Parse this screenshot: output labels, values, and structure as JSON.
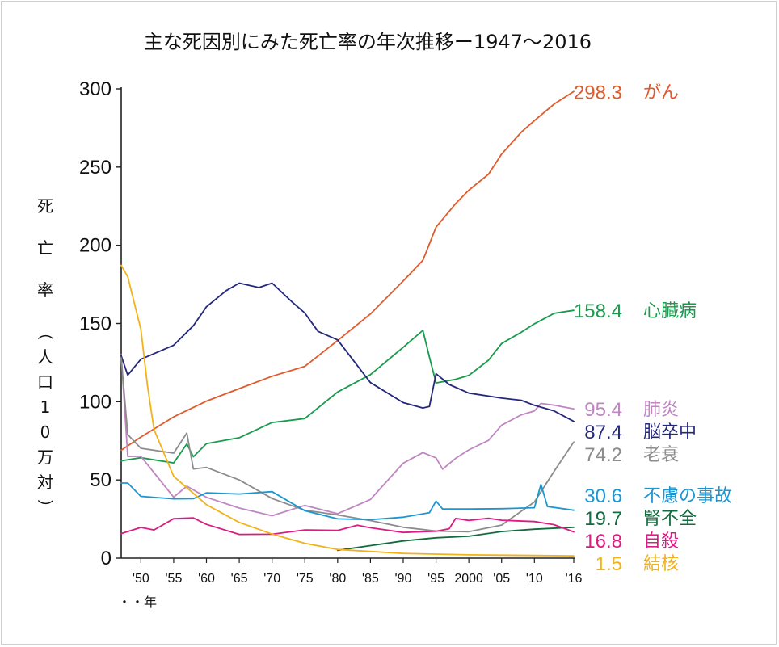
{
  "chart_data": {
    "type": "line",
    "title": "主な死因別にみた死亡率の年次推移ー1947〜2016",
    "ylabel": "死亡率（人口10万対）",
    "xlabel": "年",
    "ylim": [
      0,
      300
    ],
    "xlim": [
      1947,
      2016
    ],
    "yticks": [
      "0",
      "50",
      "100",
      "150",
      "200",
      "250",
      "300"
    ],
    "xticks": [
      {
        "label": "'50",
        "year": 1950
      },
      {
        "label": "'55",
        "year": 1955
      },
      {
        "label": "'60",
        "year": 1960
      },
      {
        "label": "'65",
        "year": 1965
      },
      {
        "label": "'70",
        "year": 1970
      },
      {
        "label": "'75",
        "year": 1975
      },
      {
        "label": "'80",
        "year": 1980
      },
      {
        "label": "'85",
        "year": 1985
      },
      {
        "label": "'90",
        "year": 1990
      },
      {
        "label": "'95",
        "year": 1995
      },
      {
        "label": "2000",
        "year": 2000
      },
      {
        "label": "'05",
        "year": 2005
      },
      {
        "label": "'10",
        "year": 2010
      },
      {
        "label": "'16",
        "year": 2016
      }
    ],
    "x_footnote": "・・年",
    "grid": false,
    "series": [
      {
        "name": "がん",
        "end_label": "298.3",
        "color": "#e05a2b",
        "x": [
          1947,
          1950,
          1955,
          1960,
          1965,
          1970,
          1975,
          1980,
          1985,
          1990,
          1993,
          1995,
          1998,
          2000,
          2003,
          2005,
          2008,
          2010,
          2013,
          2016
        ],
        "values": [
          69.0,
          77.4,
          90.3,
          100.4,
          108.4,
          116.3,
          122.6,
          139.1,
          156.1,
          177.2,
          190.4,
          211.6,
          226.7,
          235.2,
          245.4,
          258.3,
          272.3,
          279.7,
          290.3,
          298.3
        ]
      },
      {
        "name": "心臓病",
        "end_label": "158.4",
        "color": "#1a9a4c",
        "x": [
          1947,
          1950,
          1955,
          1957,
          1958,
          1960,
          1965,
          1970,
          1975,
          1980,
          1985,
          1990,
          1993,
          1994,
          1995,
          1998,
          2000,
          2003,
          2005,
          2008,
          2010,
          2013,
          2016
        ],
        "values": [
          62.2,
          64.2,
          60.9,
          73.0,
          64.8,
          73.2,
          77.0,
          86.7,
          89.2,
          106.2,
          117.3,
          134.8,
          145.6,
          128.5,
          112.0,
          114.3,
          116.8,
          126.5,
          137.2,
          144.4,
          149.8,
          156.5,
          158.4
        ]
      },
      {
        "name": "肺炎",
        "end_label": "95.4",
        "color": "#bf86c2",
        "x": [
          1947,
          1948,
          1950,
          1955,
          1957,
          1960,
          1965,
          1970,
          1975,
          1980,
          1985,
          1990,
          1993,
          1995,
          1996,
          1998,
          2000,
          2003,
          2005,
          2008,
          2010,
          2011,
          2013,
          2016
        ],
        "values": [
          130.0,
          65.0,
          65.1,
          39.0,
          46.0,
          38.9,
          32.0,
          27.1,
          33.7,
          28.4,
          37.5,
          60.7,
          67.5,
          64.1,
          56.9,
          63.8,
          69.2,
          75.3,
          85.0,
          91.6,
          94.1,
          98.9,
          97.8,
          95.4
        ]
      },
      {
        "name": "脳卒中",
        "end_label": "87.4",
        "color": "#24287b",
        "x": [
          1947,
          1948,
          1950,
          1955,
          1958,
          1960,
          1963,
          1965,
          1968,
          1970,
          1973,
          1975,
          1977,
          1980,
          1985,
          1990,
          1993,
          1994,
          1995,
          1997,
          2000,
          2005,
          2008,
          2010,
          2013,
          2016
        ],
        "values": [
          129.4,
          117.0,
          127.1,
          136.1,
          148.6,
          160.7,
          171.0,
          175.8,
          173.0,
          175.8,
          164.0,
          156.7,
          145.0,
          139.5,
          112.2,
          99.4,
          96.0,
          96.9,
          117.9,
          111.0,
          105.5,
          102.3,
          100.9,
          97.7,
          94.1,
          87.4
        ]
      },
      {
        "name": "老衰",
        "end_label": "74.2",
        "color": "#8c8c8c",
        "x": [
          1947,
          1948,
          1950,
          1955,
          1957,
          1958,
          1960,
          1965,
          1970,
          1975,
          1980,
          1985,
          1990,
          1995,
          2000,
          2005,
          2010,
          2013,
          2016
        ],
        "values": [
          128.0,
          79.0,
          70.2,
          67.1,
          80.0,
          57.0,
          58.0,
          50.0,
          38.1,
          30.6,
          27.6,
          24.0,
          19.7,
          17.3,
          16.9,
          21.1,
          35.9,
          55.5,
          74.2
        ]
      },
      {
        "name": "不慮の事故",
        "end_label": "30.6",
        "color": "#1b96d0",
        "x": [
          1947,
          1948,
          1950,
          1955,
          1958,
          1960,
          1965,
          1970,
          1975,
          1980,
          1985,
          1990,
          1994,
          1995,
          1996,
          2000,
          2005,
          2010,
          2011,
          2012,
          2016
        ],
        "values": [
          48.0,
          48.0,
          39.5,
          37.9,
          38.0,
          41.7,
          41.0,
          42.5,
          30.3,
          25.1,
          24.6,
          26.2,
          29.0,
          36.5,
          31.4,
          31.4,
          31.6,
          32.2,
          47.1,
          33.0,
          30.6
        ]
      },
      {
        "name": "腎不全",
        "end_label": "19.7",
        "color": "#136b3f",
        "x": [
          1980,
          1985,
          1990,
          1995,
          2000,
          2005,
          2010,
          2016
        ],
        "values": [
          5.0,
          8.0,
          11.0,
          13.0,
          14.0,
          17.0,
          18.5,
          19.7
        ]
      },
      {
        "name": "自殺",
        "end_label": "16.8",
        "color": "#dc1b83",
        "x": [
          1947,
          1950,
          1952,
          1955,
          1958,
          1960,
          1965,
          1970,
          1975,
          1980,
          1983,
          1985,
          1990,
          1995,
          1997,
          1998,
          2000,
          2003,
          2005,
          2010,
          2013,
          2016
        ],
        "values": [
          15.7,
          19.6,
          18.0,
          25.2,
          25.7,
          21.6,
          15.2,
          15.3,
          18.0,
          17.7,
          21.0,
          19.4,
          16.4,
          17.2,
          18.8,
          25.4,
          24.1,
          25.5,
          24.2,
          23.4,
          21.4,
          16.8
        ]
      },
      {
        "name": "結核",
        "end_label": "1.5",
        "color": "#f2b21a",
        "x": [
          1947,
          1948,
          1950,
          1951,
          1952,
          1955,
          1960,
          1965,
          1970,
          1975,
          1980,
          1990,
          2000,
          2010,
          2016
        ],
        "values": [
          187.2,
          179.9,
          146.4,
          110.3,
          82.2,
          52.3,
          34.2,
          22.8,
          15.4,
          9.5,
          5.5,
          3.0,
          2.1,
          1.7,
          1.5
        ]
      }
    ]
  }
}
